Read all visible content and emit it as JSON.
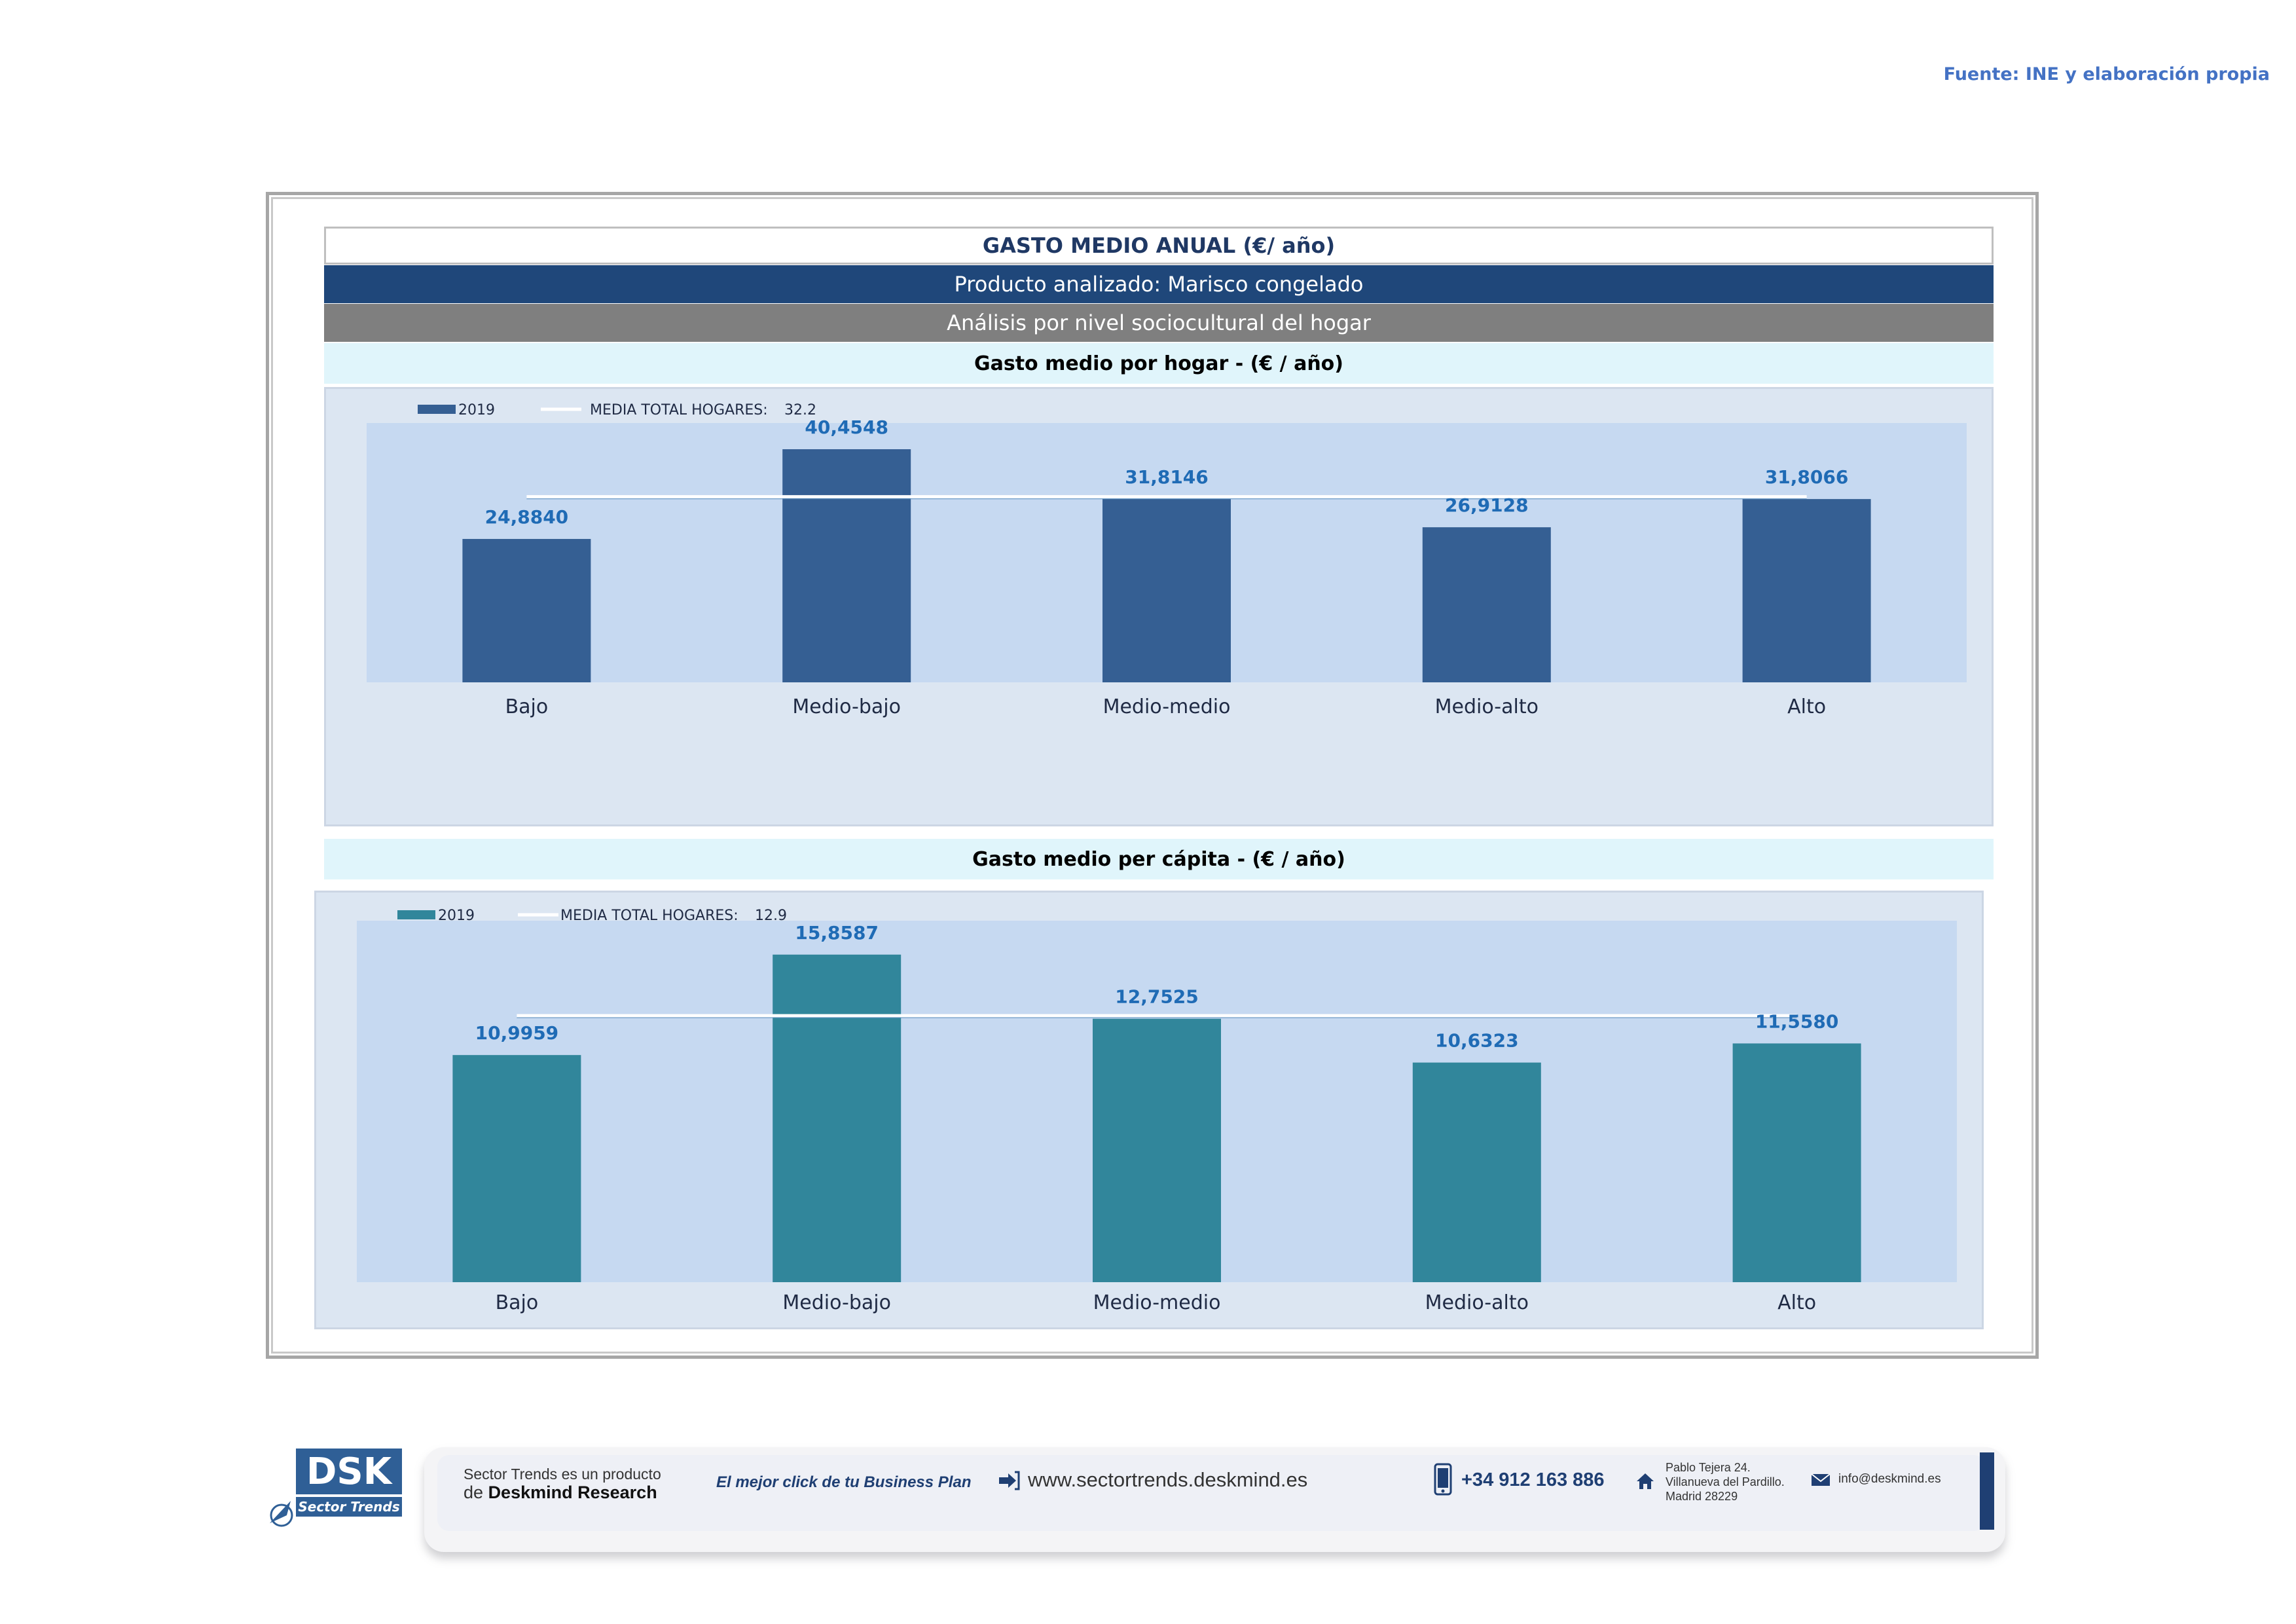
{
  "source": "Fuente: INE y elaboración propia",
  "header": {
    "title": "GASTO MEDIO ANUAL (€/ año)",
    "product": "Producto analizado: Marisco congelado",
    "analysis": "Análisis por nivel sociocultural del hogar"
  },
  "charts": {
    "hogar": {
      "subtitle": "Gasto medio por hogar -  (€ / año)"
    },
    "capita": {
      "subtitle": "Gasto medio per cápita -  (€ / año)"
    }
  },
  "chart_data": [
    {
      "type": "bar",
      "title": "Gasto medio por hogar -  (€ / año)",
      "categories": [
        "Bajo",
        "Medio-bajo",
        "Medio-medio",
        "Medio-alto",
        "Alto"
      ],
      "series": [
        {
          "name": "2019",
          "values": [
            24.884,
            40.4548,
            31.8146,
            26.9128,
            31.8066
          ]
        }
      ],
      "value_labels": [
        "24,8840",
        "40,4548",
        "31,8146",
        "26,9128",
        "31,8066"
      ],
      "reference_line": {
        "label": "MEDIA TOTAL  HOGARES:",
        "value": 32.2,
        "value_label": "32.2"
      },
      "ylim": [
        0,
        45
      ],
      "legend": "top-left",
      "bar_color": "#355f93"
    },
    {
      "type": "bar",
      "title": "Gasto medio per cápita -  (€ / año)",
      "categories": [
        "Bajo",
        "Medio-bajo",
        "Medio-medio",
        "Medio-alto",
        "Alto"
      ],
      "series": [
        {
          "name": "2019",
          "values": [
            10.9959,
            15.8587,
            12.7525,
            10.6323,
            11.558
          ]
        }
      ],
      "value_labels": [
        "10,9959",
        "15,8587",
        "12,7525",
        "10,6323",
        "11,5580"
      ],
      "reference_line": {
        "label": "MEDIA TOTAL  HOGARES:",
        "value": 12.9,
        "value_label": "12.9"
      },
      "ylim": [
        0,
        17.5
      ],
      "legend": "top-left",
      "bar_color": "#31869b"
    }
  ],
  "footer": {
    "logo_text": "DSK",
    "logo_sub": "Sector Trends",
    "product_line1": "Sector Trends es un producto",
    "product_line2_prefix": "de",
    "product_line2_brand": "Deskmind Research",
    "slogan": "El mejor click de tu Business Plan",
    "website": "www.sectortrends.deskmind.es",
    "phone": "+34 912 163 886",
    "address_line1": "Pablo Tejera 24.",
    "address_line2": "Villanueva del Pardillo.",
    "address_line3": "Madrid 28229",
    "email": "info@deskmind.es",
    "accent_color": "#1f3f73"
  }
}
